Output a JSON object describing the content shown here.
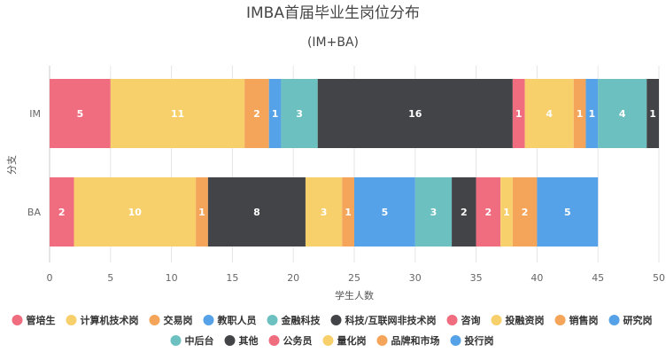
{
  "chart_data": {
    "type": "bar",
    "orientation": "horizontal",
    "stacked": true,
    "title": "IMBA首届毕业生岗位分布",
    "subtitle": "(IM+BA)",
    "xlabel": "学生人数",
    "ylabel": "分支",
    "categories": [
      "IM",
      "BA"
    ],
    "xlim": [
      0,
      50
    ],
    "xticks": [
      0,
      5,
      10,
      15,
      20,
      25,
      30,
      35,
      40,
      45,
      50
    ],
    "grid": true,
    "legend_position": "bottom",
    "series": [
      {
        "name": "管培生",
        "color": "#f06c7f",
        "values": [
          5,
          2
        ]
      },
      {
        "name": "计算机技术岗",
        "color": "#f7d06b",
        "values": [
          11,
          10
        ]
      },
      {
        "name": "交易岗",
        "color": "#f4a55a",
        "values": [
          2,
          1
        ]
      },
      {
        "name": "教职人员",
        "color": "#55a2e8",
        "values": [
          1,
          0
        ]
      },
      {
        "name": "金融科技",
        "color": "#6cc0c0",
        "values": [
          3,
          0
        ]
      },
      {
        "name": "科技/互联网非技术岗",
        "color": "#434448",
        "values": [
          16,
          8
        ]
      },
      {
        "name": "咨询",
        "color": "#f06c7f",
        "values": [
          1,
          0
        ]
      },
      {
        "name": "投融资岗",
        "color": "#f7d06b",
        "values": [
          4,
          3
        ]
      },
      {
        "name": "销售岗",
        "color": "#f4a55a",
        "values": [
          1,
          1
        ]
      },
      {
        "name": "研究岗",
        "color": "#55a2e8",
        "values": [
          1,
          5
        ]
      },
      {
        "name": "中后台",
        "color": "#6cc0c0",
        "values": [
          4,
          3
        ]
      },
      {
        "name": "其他",
        "color": "#434448",
        "values": [
          1,
          2
        ]
      },
      {
        "name": "公务员",
        "color": "#f06c7f",
        "values": [
          0,
          2
        ]
      },
      {
        "name": "量化岗",
        "color": "#f7d06b",
        "values": [
          0,
          1
        ]
      },
      {
        "name": "品牌和市场",
        "color": "#f4a55a",
        "values": [
          0,
          2
        ]
      },
      {
        "name": "投行岗",
        "color": "#55a2e8",
        "values": [
          0,
          5
        ]
      }
    ]
  }
}
